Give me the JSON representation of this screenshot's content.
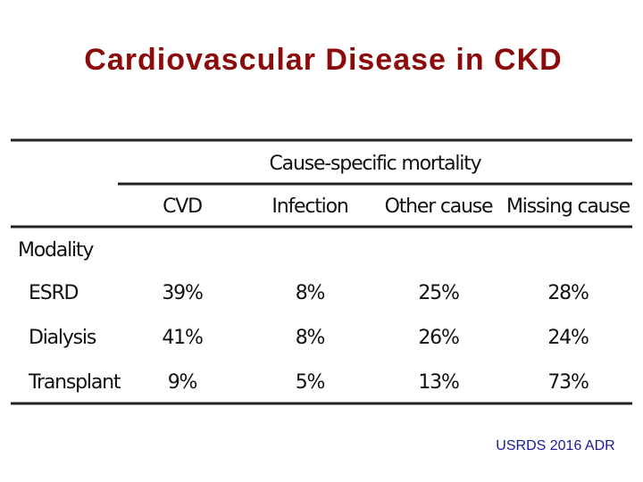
{
  "title": "Cardiovascular Disease in CKD",
  "table": {
    "group_header": "Cause-specific mortality",
    "columns": [
      "CVD",
      "Infection",
      "Other cause",
      "Missing cause"
    ],
    "row_group": "Modality",
    "rows": [
      [
        "ESRD",
        "39%",
        "8%",
        "25%",
        "28%"
      ],
      [
        "Dialysis",
        "41%",
        "8%",
        "26%",
        "24%"
      ],
      [
        "Transplant",
        "9%",
        "5%",
        "13%",
        "73%"
      ]
    ]
  },
  "source": "USRDS 2016 ADR"
}
